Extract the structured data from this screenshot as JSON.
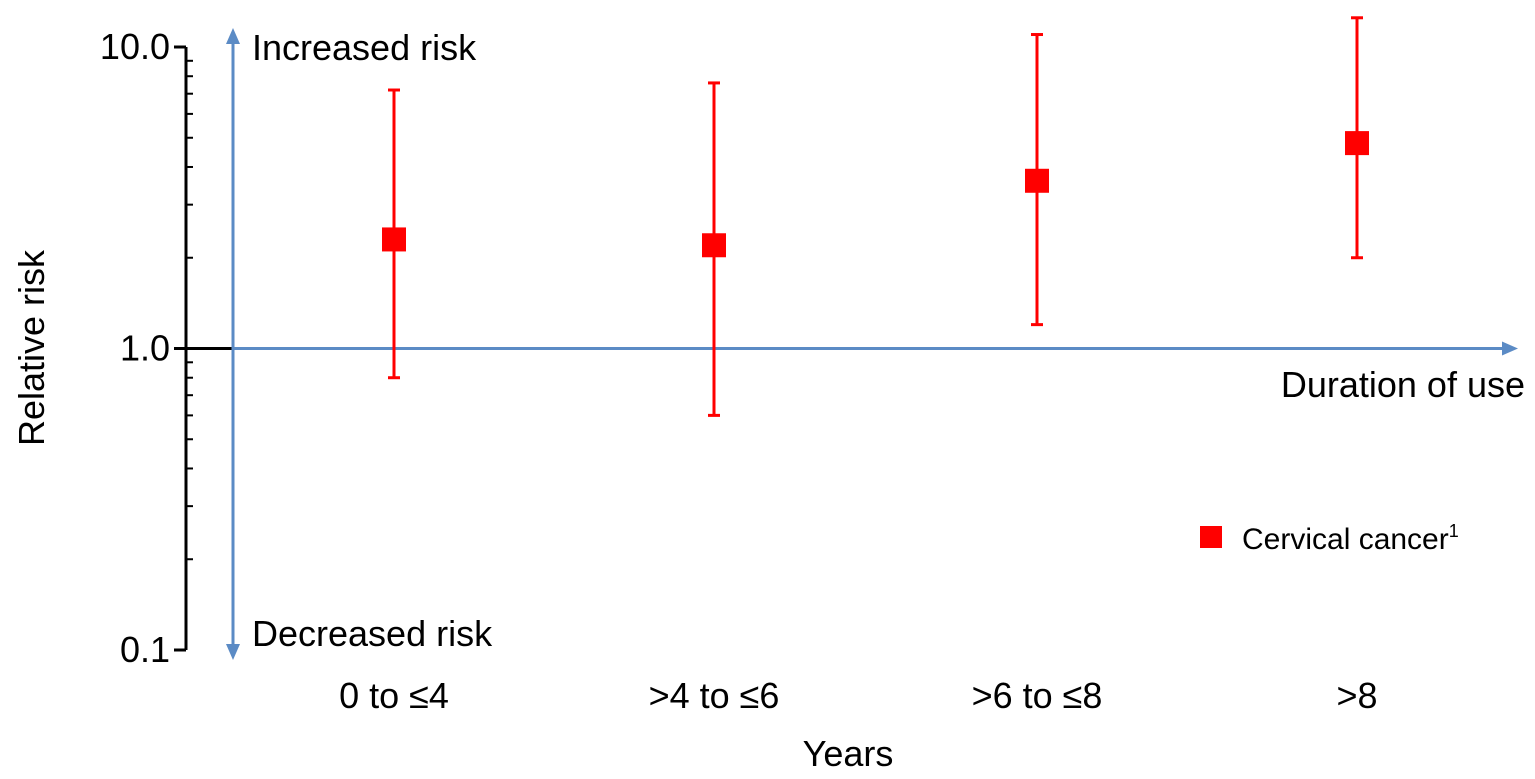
{
  "chart_data": {
    "type": "scatter",
    "title": "",
    "xlabel": "Years",
    "ylabel": "Relative risk",
    "yscale": "log",
    "ylim": [
      0.1,
      10.0
    ],
    "yticks": [
      "10.0",
      "1.0",
      "0.1"
    ],
    "categories": [
      "0 to ≤4",
      ">4 to ≤6",
      ">6 to ≤8",
      ">8"
    ],
    "series": [
      {
        "name": "Cervical cancer",
        "name_superscript": "1",
        "color": "#ff0000",
        "marker": "square",
        "values": [
          2.3,
          2.2,
          3.6,
          4.8
        ],
        "ci_low": [
          0.8,
          0.6,
          1.2,
          2.0
        ],
        "ci_high": [
          7.2,
          7.6,
          11.0,
          12.5
        ]
      }
    ],
    "annotations": {
      "increased": "Increased risk",
      "decreased": "Decreased risk",
      "duration": "Duration of use"
    },
    "reference_line": 1.0,
    "reference_color": "#5b8bc5",
    "legend_position": "right",
    "grid": false
  }
}
